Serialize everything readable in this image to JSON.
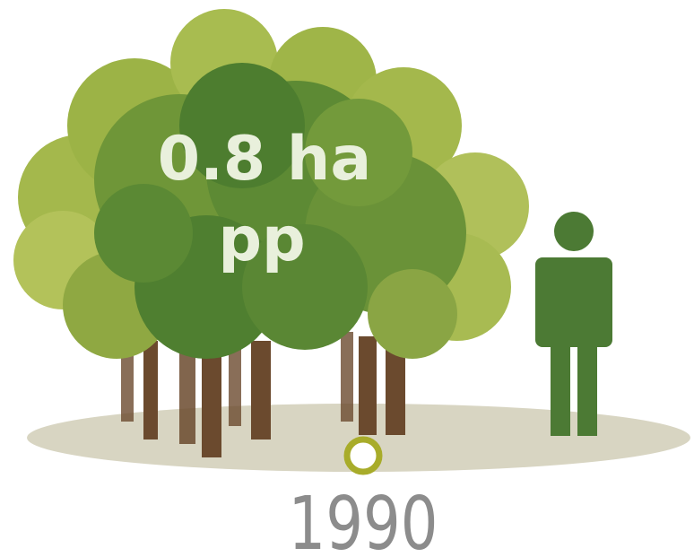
{
  "label": {
    "line1": "0.8 ha",
    "line2": "pp"
  },
  "year": "1990"
}
